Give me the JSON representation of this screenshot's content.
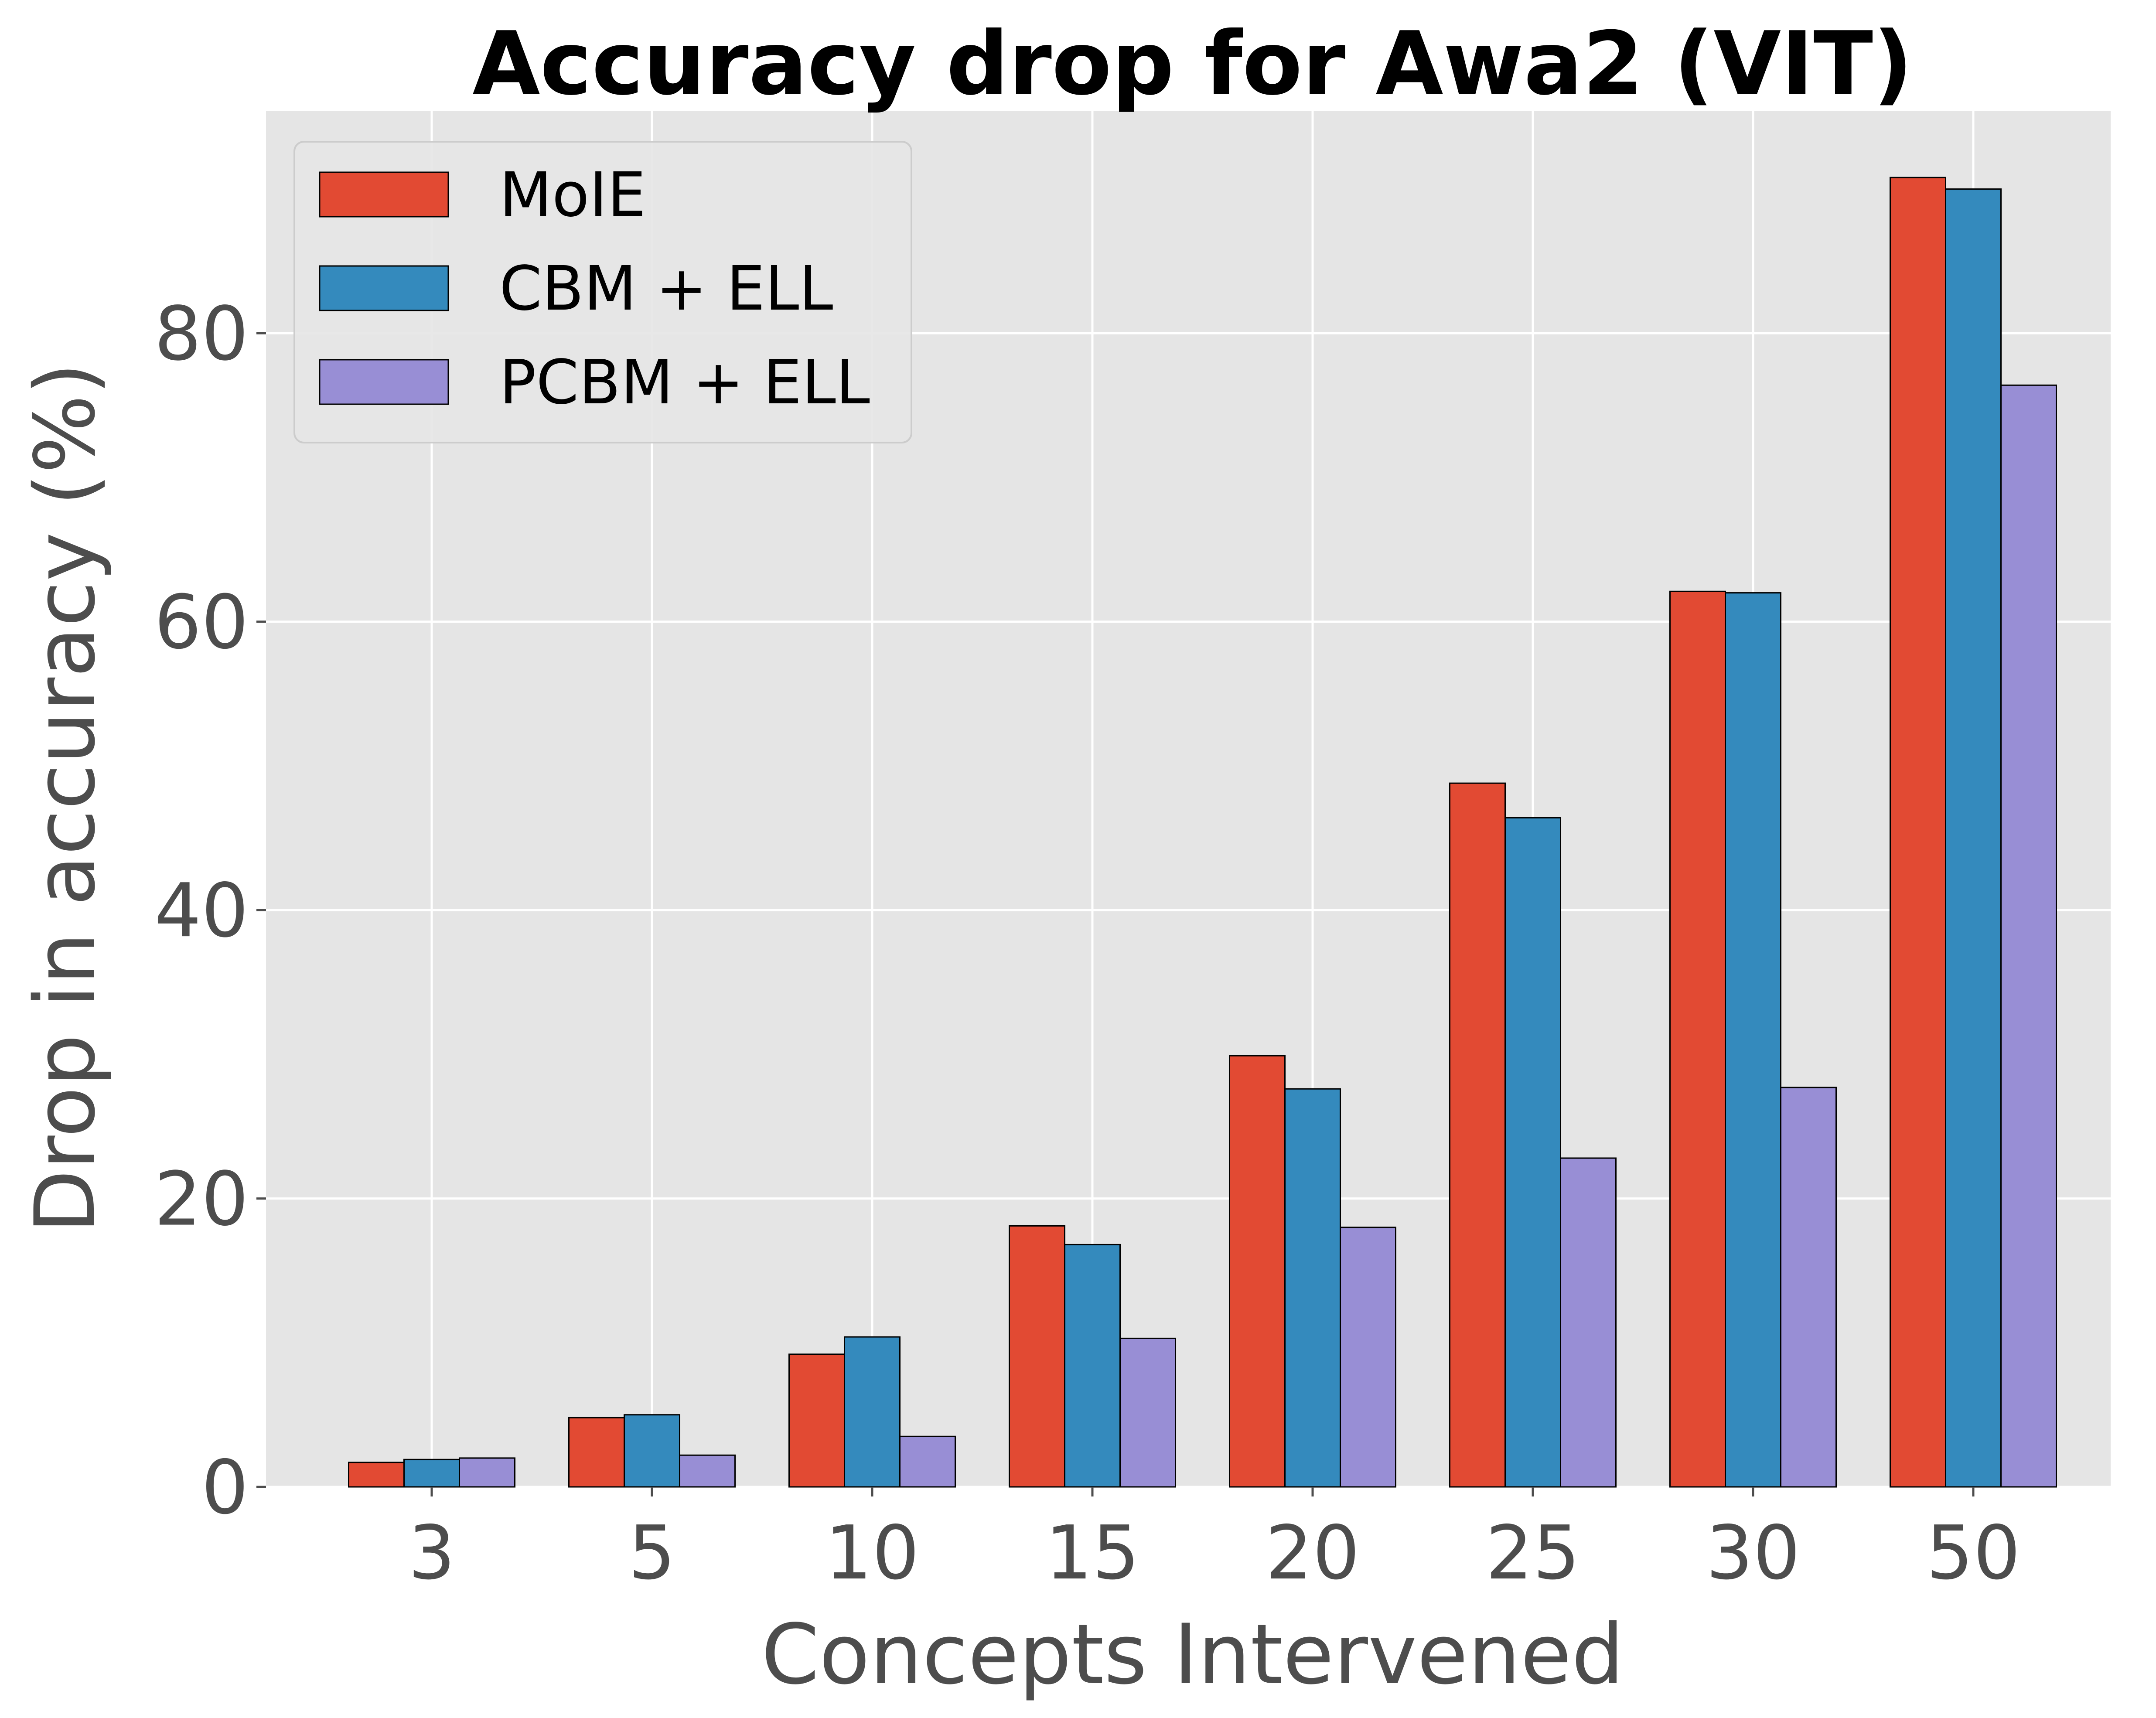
{
  "chart_data": {
    "type": "bar",
    "title": "Accuracy drop for Awa2 (VIT)",
    "xlabel": "Concepts Intervened",
    "ylabel": "Drop in accuracy (%)",
    "categories": [
      "3",
      "5",
      "10",
      "15",
      "20",
      "25",
      "30",
      "50"
    ],
    "series": [
      {
        "name": "MoIE",
        "color": "#e24a33",
        "values": [
          1.7,
          4.8,
          9.2,
          18.1,
          29.9,
          48.8,
          62.1,
          90.8
        ]
      },
      {
        "name": "CBM + ELL",
        "color": "#348abd",
        "values": [
          1.9,
          5.0,
          10.4,
          16.8,
          27.6,
          46.4,
          62.0,
          90.0
        ]
      },
      {
        "name": "PCBM + ELL",
        "color": "#988ed5",
        "values": [
          2.0,
          2.2,
          3.5,
          10.3,
          18.0,
          22.8,
          27.7,
          76.4
        ]
      }
    ],
    "ylim": [
      0,
      95.4
    ],
    "yticks": [
      "0",
      "20",
      "40",
      "60",
      "80"
    ],
    "grid": true,
    "legend_position": "top-left",
    "plot_background": "#e5e5e5",
    "grid_color": "#ffffff",
    "bar_edge_color": "#000000"
  }
}
